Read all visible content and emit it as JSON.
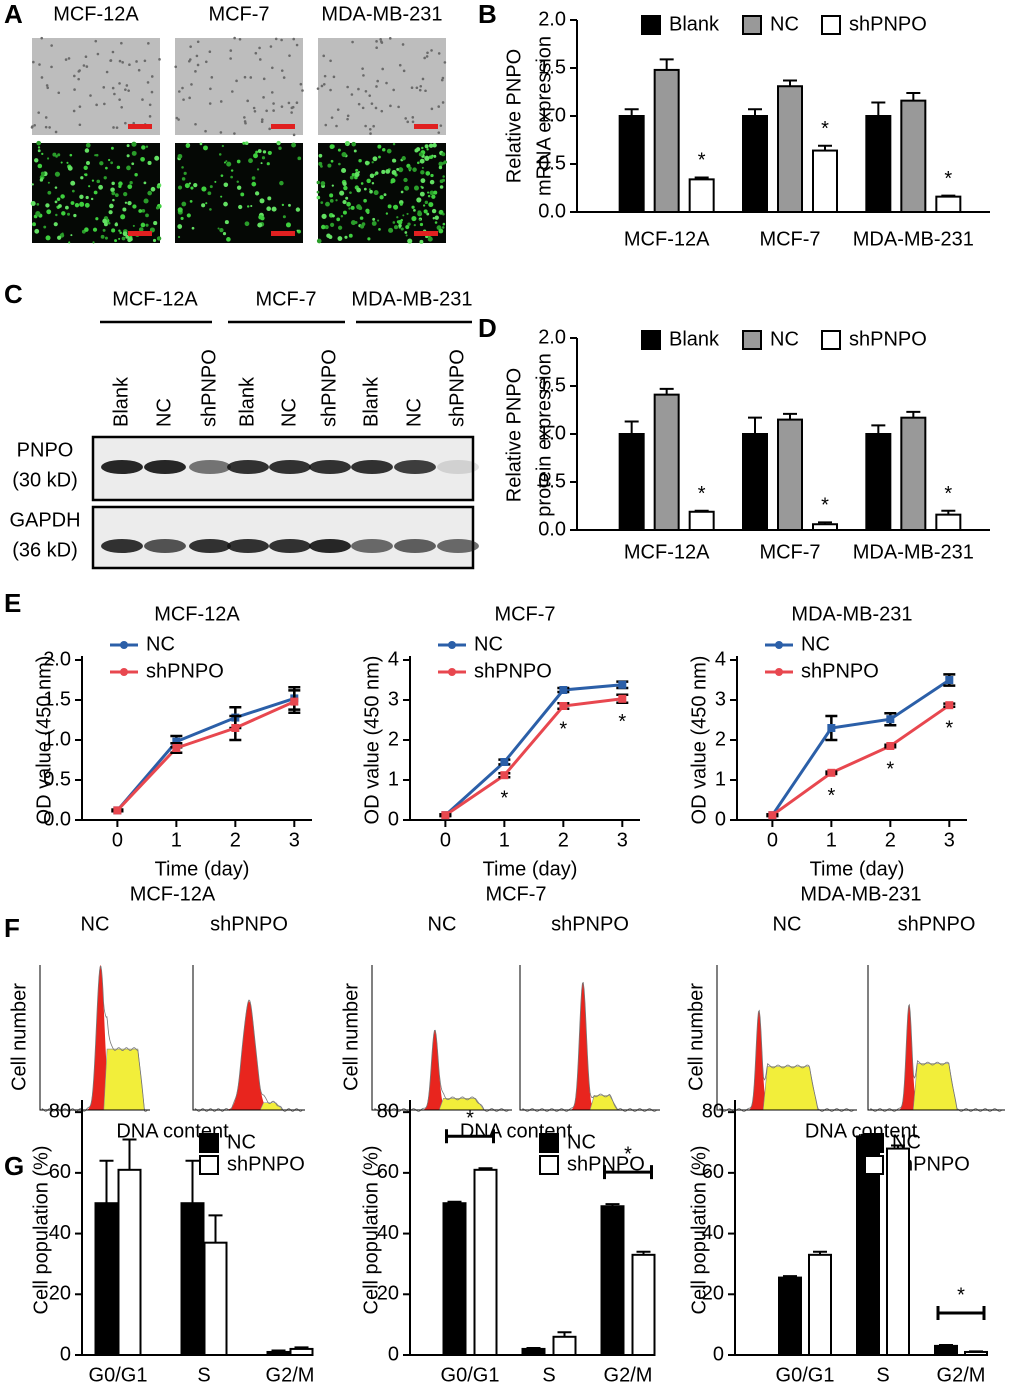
{
  "panel_labels": [
    "A",
    "B",
    "C",
    "D",
    "E",
    "F",
    "G"
  ],
  "panel_a": {
    "titles": [
      "MCF-12A",
      "MCF-7",
      "MDA-MB-231"
    ]
  },
  "panel_c": {
    "groups": [
      "MCF-12A",
      "MCF-7",
      "MDA-MB-231"
    ],
    "lanes": [
      "Blank",
      "NC",
      "shPNPO"
    ],
    "blots": [
      {
        "name": "PNPO",
        "size": "(30 kD)"
      },
      {
        "name": "GAPDH",
        "size": "(36 kD)"
      }
    ]
  },
  "panel_f": {
    "titles": [
      "MCF-12A",
      "MCF-7",
      "MDA-MB-231"
    ],
    "conditions": [
      "NC",
      "shPNPO"
    ],
    "y_label": "Cell number",
    "x_label": "DNA content"
  },
  "chart_data": [
    {
      "type": "bar",
      "y_label": [
        "Relative PNPO",
        "mRNA expression"
      ],
      "categories": [
        "MCF-12A",
        "MCF-7",
        "MDA-MB-231"
      ],
      "series": [
        {
          "name": "Blank",
          "color": "#000000",
          "values": [
            1.0,
            1.0,
            1.0
          ],
          "errors": [
            0.07,
            0.07,
            0.14
          ]
        },
        {
          "name": "NC",
          "color": "#999999",
          "values": [
            1.48,
            1.31,
            1.16
          ],
          "errors": [
            0.11,
            0.06,
            0.08
          ]
        },
        {
          "name": "shPNPO",
          "color": "#ffffff",
          "values": [
            0.34,
            0.64,
            0.16
          ],
          "errors": [
            0.02,
            0.05,
            0.01
          ]
        }
      ],
      "ylim": [
        0,
        2
      ],
      "yticks": [
        {
          "value": 0,
          "label": "0.0"
        },
        0.5,
        {
          "value": 1,
          "label": "1.0"
        },
        1.5,
        {
          "value": 2,
          "label": "2.0"
        }
      ],
      "significance": [
        "*",
        "*",
        "*"
      ]
    },
    {
      "type": "bar",
      "y_label": [
        "Relative PNPO",
        "protein expression"
      ],
      "categories": [
        "MCF-12A",
        "MCF-7",
        "MDA-MB-231"
      ],
      "series": [
        {
          "name": "Blank",
          "color": "#000000",
          "values": [
            1.0,
            1.0,
            1.0
          ],
          "errors": [
            0.13,
            0.17,
            0.09
          ]
        },
        {
          "name": "NC",
          "color": "#999999",
          "values": [
            1.41,
            1.15,
            1.17
          ],
          "errors": [
            0.06,
            0.06,
            0.06
          ]
        },
        {
          "name": "shPNPO",
          "color": "#ffffff",
          "values": [
            0.19,
            0.06,
            0.16
          ],
          "errors": [
            0.01,
            0.02,
            0.04
          ]
        }
      ],
      "ylim": [
        0,
        2
      ],
      "yticks": [
        {
          "value": 0,
          "label": "0.0"
        },
        0.5,
        {
          "value": 1,
          "label": "1.0"
        },
        1.5,
        {
          "value": 2,
          "label": "2.0"
        }
      ],
      "significance": [
        "*",
        "*",
        "*"
      ]
    },
    {
      "type": "line",
      "title": "MCF-12A",
      "x_label": "Time (day)",
      "y_label": "OD value (450 nm)",
      "x": [
        0,
        1,
        2,
        3
      ],
      "xlim": [
        -0.6,
        3.3
      ],
      "xticks": [
        0,
        1,
        2,
        3
      ],
      "ylim": [
        0,
        2.05
      ],
      "yticks": [
        {
          "value": 0,
          "label": "0.0"
        },
        0.5,
        {
          "value": 1,
          "label": "1.0"
        },
        1.5,
        {
          "value": 2,
          "label": "2.0"
        }
      ],
      "series": [
        {
          "name": "NC",
          "color": "#2b5fa8",
          "values": [
            0.12,
            0.98,
            1.28,
            1.52
          ],
          "errors": [
            0.01,
            0.07,
            0.13,
            0.14
          ]
        },
        {
          "name": "shPNPO",
          "color": "#e8474f",
          "values": [
            0.12,
            0.9,
            1.15,
            1.48
          ],
          "errors": [
            0.01,
            0.06,
            0.15,
            0.14
          ]
        }
      ]
    },
    {
      "type": "line",
      "title": "MCF-7",
      "x_label": "Time (day)",
      "y_label": "OD value (450 nm)",
      "x": [
        0,
        1,
        2,
        3
      ],
      "xlim": [
        -0.6,
        3.3
      ],
      "xticks": [
        0,
        1,
        2,
        3
      ],
      "ylim": [
        0,
        4.1
      ],
      "yticks": [
        0,
        1,
        2,
        3,
        4
      ],
      "series": [
        {
          "name": "NC",
          "color": "#2b5fa8",
          "values": [
            0.12,
            1.45,
            3.25,
            3.38
          ],
          "errors": [
            0.02,
            0.06,
            0.05,
            0.08
          ]
        },
        {
          "name": "shPNPO",
          "color": "#e8474f",
          "values": [
            0.12,
            1.12,
            2.85,
            3.03
          ],
          "errors": [
            0.02,
            0.05,
            0.07,
            0.1
          ]
        }
      ],
      "significance": [
        null,
        "*",
        "*",
        "*"
      ]
    },
    {
      "type": "line",
      "title": "MDA-MB-231",
      "x_label": "Time (day)",
      "y_label": "OD value (450 nm)",
      "x": [
        0,
        1,
        2,
        3
      ],
      "xlim": [
        -0.6,
        3.3
      ],
      "xticks": [
        0,
        1,
        2,
        3
      ],
      "ylim": [
        0,
        4.1
      ],
      "yticks": [
        0,
        1,
        2,
        3,
        4
      ],
      "series": [
        {
          "name": "NC",
          "color": "#2b5fa8",
          "values": [
            0.12,
            2.3,
            2.52,
            3.5
          ],
          "errors": [
            0.02,
            0.3,
            0.15,
            0.14
          ]
        },
        {
          "name": "shPNPO",
          "color": "#e8474f",
          "values": [
            0.12,
            1.18,
            1.85,
            2.87
          ],
          "errors": [
            0.02,
            0.03,
            0.03,
            0.04
          ]
        }
      ],
      "significance": [
        null,
        "*",
        "*",
        "*"
      ]
    },
    {
      "type": "bar",
      "y_label": "Cell population (%)",
      "categories": [
        "G0/G1",
        "S",
        "G2/M"
      ],
      "series": [
        {
          "name": "NC",
          "color": "#000000",
          "values": [
            50,
            50,
            1
          ],
          "errors": [
            14,
            14,
            0.5
          ]
        },
        {
          "name": "shPNPO",
          "color": "#ffffff",
          "values": [
            61,
            37,
            2
          ],
          "errors": [
            10,
            9,
            0.5
          ]
        }
      ],
      "ylim": [
        0,
        84
      ],
      "yticks": [
        0,
        20,
        40,
        60,
        80
      ]
    },
    {
      "type": "bar",
      "y_label": "Cell population (%)",
      "categories": [
        "G0/G1",
        "S",
        "G2/M"
      ],
      "series": [
        {
          "name": "NC",
          "color": "#000000",
          "values": [
            50,
            2,
            49
          ],
          "errors": [
            0.5,
            0.3,
            0.7
          ]
        },
        {
          "name": "shPNPO",
          "color": "#ffffff",
          "values": [
            61,
            6,
            33
          ],
          "errors": [
            0.5,
            1.5,
            1
          ]
        }
      ],
      "ylim": [
        0,
        84
      ],
      "yticks": [
        0,
        20,
        40,
        60,
        80
      ],
      "significance": [
        "*",
        null,
        "*"
      ]
    },
    {
      "type": "bar",
      "y_label": "Cell population (%)",
      "categories": [
        "G0/G1",
        "S",
        "G2/M"
      ],
      "series": [
        {
          "name": "NC",
          "color": "#000000",
          "values": [
            25.5,
            72,
            3
          ],
          "errors": [
            0.5,
            0.5,
            0.3
          ]
        },
        {
          "name": "shPNPO",
          "color": "#ffffff",
          "values": [
            33,
            68,
            1
          ],
          "errors": [
            1,
            1,
            0.2
          ]
        }
      ],
      "ylim": [
        0,
        84
      ],
      "yticks": [
        0,
        20,
        40,
        60,
        80
      ],
      "significance": [
        null,
        null,
        "*"
      ]
    }
  ]
}
